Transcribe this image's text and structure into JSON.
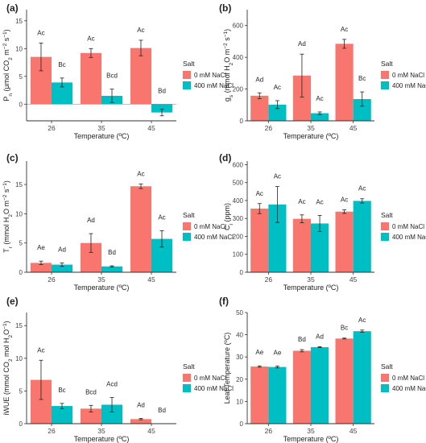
{
  "colors": {
    "salt_0": "#F8766D",
    "salt_400": "#00BFC4",
    "axis": "#333333",
    "error": "#222222"
  },
  "chart_data": [
    {
      "type": "bar",
      "panel_label": "(a)",
      "ylabel_parts": [
        "P",
        "n",
        " (μmol CO",
        "2",
        " m",
        "−2",
        " s",
        "−1",
        ")"
      ],
      "xlabel": "Temperature (ºC)",
      "categories": [
        "26",
        "35",
        "45"
      ],
      "series": [
        {
          "name": "0 mM NaCl",
          "values": [
            8.5,
            9.2,
            10.1
          ],
          "errors": [
            2.5,
            0.8,
            1.4
          ],
          "letters": [
            "Ac",
            "Ac",
            "Ac"
          ]
        },
        {
          "name": "400 mM NaCl",
          "values": [
            3.9,
            1.5,
            -1.5
          ],
          "errors": [
            0.8,
            1.2,
            0.6
          ],
          "letters": [
            "Bc",
            "Bcd",
            "Bd"
          ]
        }
      ],
      "yticks": [
        0,
        5,
        10,
        15
      ],
      "ylim": [
        -3,
        17
      ],
      "legend_title": "Salt",
      "legend_position": "right",
      "grid": false
    },
    {
      "type": "bar",
      "panel_label": "(b)",
      "ylabel_parts": [
        "g",
        "s",
        " (mmol H",
        "2",
        "O m",
        "−2",
        " s",
        "−1",
        ")"
      ],
      "xlabel": "Temperature (ºC)",
      "categories": [
        "26",
        "35",
        "45"
      ],
      "series": [
        {
          "name": "0 mM NaCl",
          "values": [
            158,
            285,
            485
          ],
          "errors": [
            18,
            135,
            28
          ],
          "letters": [
            "Ad",
            "Ad",
            "Ac"
          ]
        },
        {
          "name": "400 mM NaCl",
          "values": [
            102,
            48,
            137
          ],
          "errors": [
            25,
            8,
            45
          ],
          "letters": [
            "Ac",
            "Ac",
            "Bc"
          ]
        }
      ],
      "yticks": [
        0,
        200,
        400,
        600
      ],
      "ylim": [
        0,
        700
      ],
      "legend_title": "Salt",
      "legend_position": "right",
      "grid": false
    },
    {
      "type": "bar",
      "panel_label": "(c)",
      "ylabel_parts": [
        "T",
        "r",
        " (mmol H",
        "2",
        "O m",
        "−2",
        " s",
        "−1",
        ")"
      ],
      "xlabel": "Temperature (ºC)",
      "categories": [
        "26",
        "35",
        "45"
      ],
      "series": [
        {
          "name": "0 mM NaCl",
          "values": [
            1.6,
            5.0,
            14.7
          ],
          "errors": [
            0.3,
            1.6,
            0.4
          ],
          "letters": [
            "Ae",
            "Ad",
            "Ac"
          ]
        },
        {
          "name": "400 mM NaCl",
          "values": [
            1.3,
            1.0,
            5.7
          ],
          "errors": [
            0.3,
            0.1,
            1.4
          ],
          "letters": [
            "Ad",
            "Bd",
            "Ac"
          ]
        }
      ],
      "yticks": [
        0,
        5,
        10,
        15
      ],
      "ylim": [
        0,
        19
      ],
      "legend_title": "Salt",
      "legend_position": "right",
      "grid": false
    },
    {
      "type": "bar",
      "panel_label": "(d)",
      "ylabel_parts": [
        "C",
        "i",
        " (ppm)"
      ],
      "xlabel": "Temperature (ºC)",
      "categories": [
        "26",
        "35",
        "45"
      ],
      "series": [
        {
          "name": "0 mM NaCl",
          "values": [
            355,
            298,
            338
          ],
          "errors": [
            28,
            22,
            10
          ],
          "letters": [
            "Ac",
            "Ac",
            "Ac"
          ]
        },
        {
          "name": "400 mM NaCl",
          "values": [
            378,
            272,
            398
          ],
          "errors": [
            100,
            45,
            12
          ],
          "letters": [
            "Ac",
            "Ac",
            "Ac"
          ]
        }
      ],
      "yticks": [
        0,
        100,
        200,
        300,
        400,
        500,
        600
      ],
      "ylim": [
        0,
        620
      ],
      "legend_title": "Salt",
      "legend_position": "right",
      "grid": false
    },
    {
      "type": "bar",
      "panel_label": "(e)",
      "ylabel_parts": [
        "iWUE (mmol CO",
        "2",
        " mol H",
        "2",
        "O",
        "−1",
        ")"
      ],
      "xlabel": "Temperature (ºC)",
      "categories": [
        "26",
        "35",
        "45"
      ],
      "series": [
        {
          "name": "0 mM NaCl",
          "values": [
            6.7,
            2.3,
            0.7
          ],
          "errors": [
            3.0,
            0.5,
            0.1
          ],
          "letters": [
            "Ac",
            "Bcd",
            "Ad"
          ]
        },
        {
          "name": "400 mM NaCl",
          "values": [
            2.7,
            2.9,
            0.0
          ],
          "errors": [
            0.4,
            1.1,
            0.0
          ],
          "letters": [
            "Bc",
            "Acd",
            "Bd"
          ]
        }
      ],
      "yticks": [
        0,
        5,
        10,
        15
      ],
      "ylim": [
        0,
        17
      ],
      "legend_title": "Salt",
      "legend_position": "right",
      "grid": false
    },
    {
      "type": "bar",
      "panel_label": "(f)",
      "ylabel_parts": [
        "Leaf Temperature (ºC)"
      ],
      "xlabel": "Temperature (ºC)",
      "categories": [
        "26",
        "35",
        "45"
      ],
      "series": [
        {
          "name": "0 mM NaCl",
          "values": [
            25.7,
            32.8,
            38.3
          ],
          "errors": [
            0.3,
            0.5,
            0.2
          ],
          "letters": [
            "Ae",
            "Bd",
            "Bc"
          ]
        },
        {
          "name": "400 mM NaCl",
          "values": [
            25.5,
            34.4,
            41.6
          ],
          "errors": [
            0.4,
            0.2,
            0.5
          ],
          "letters": [
            "Ae",
            "Ad",
            "Ac"
          ]
        }
      ],
      "yticks": [
        0,
        10,
        20,
        30,
        40,
        50
      ],
      "ylim": [
        0,
        50
      ],
      "legend_title": "Salt",
      "legend_position": "right",
      "grid": false
    }
  ]
}
